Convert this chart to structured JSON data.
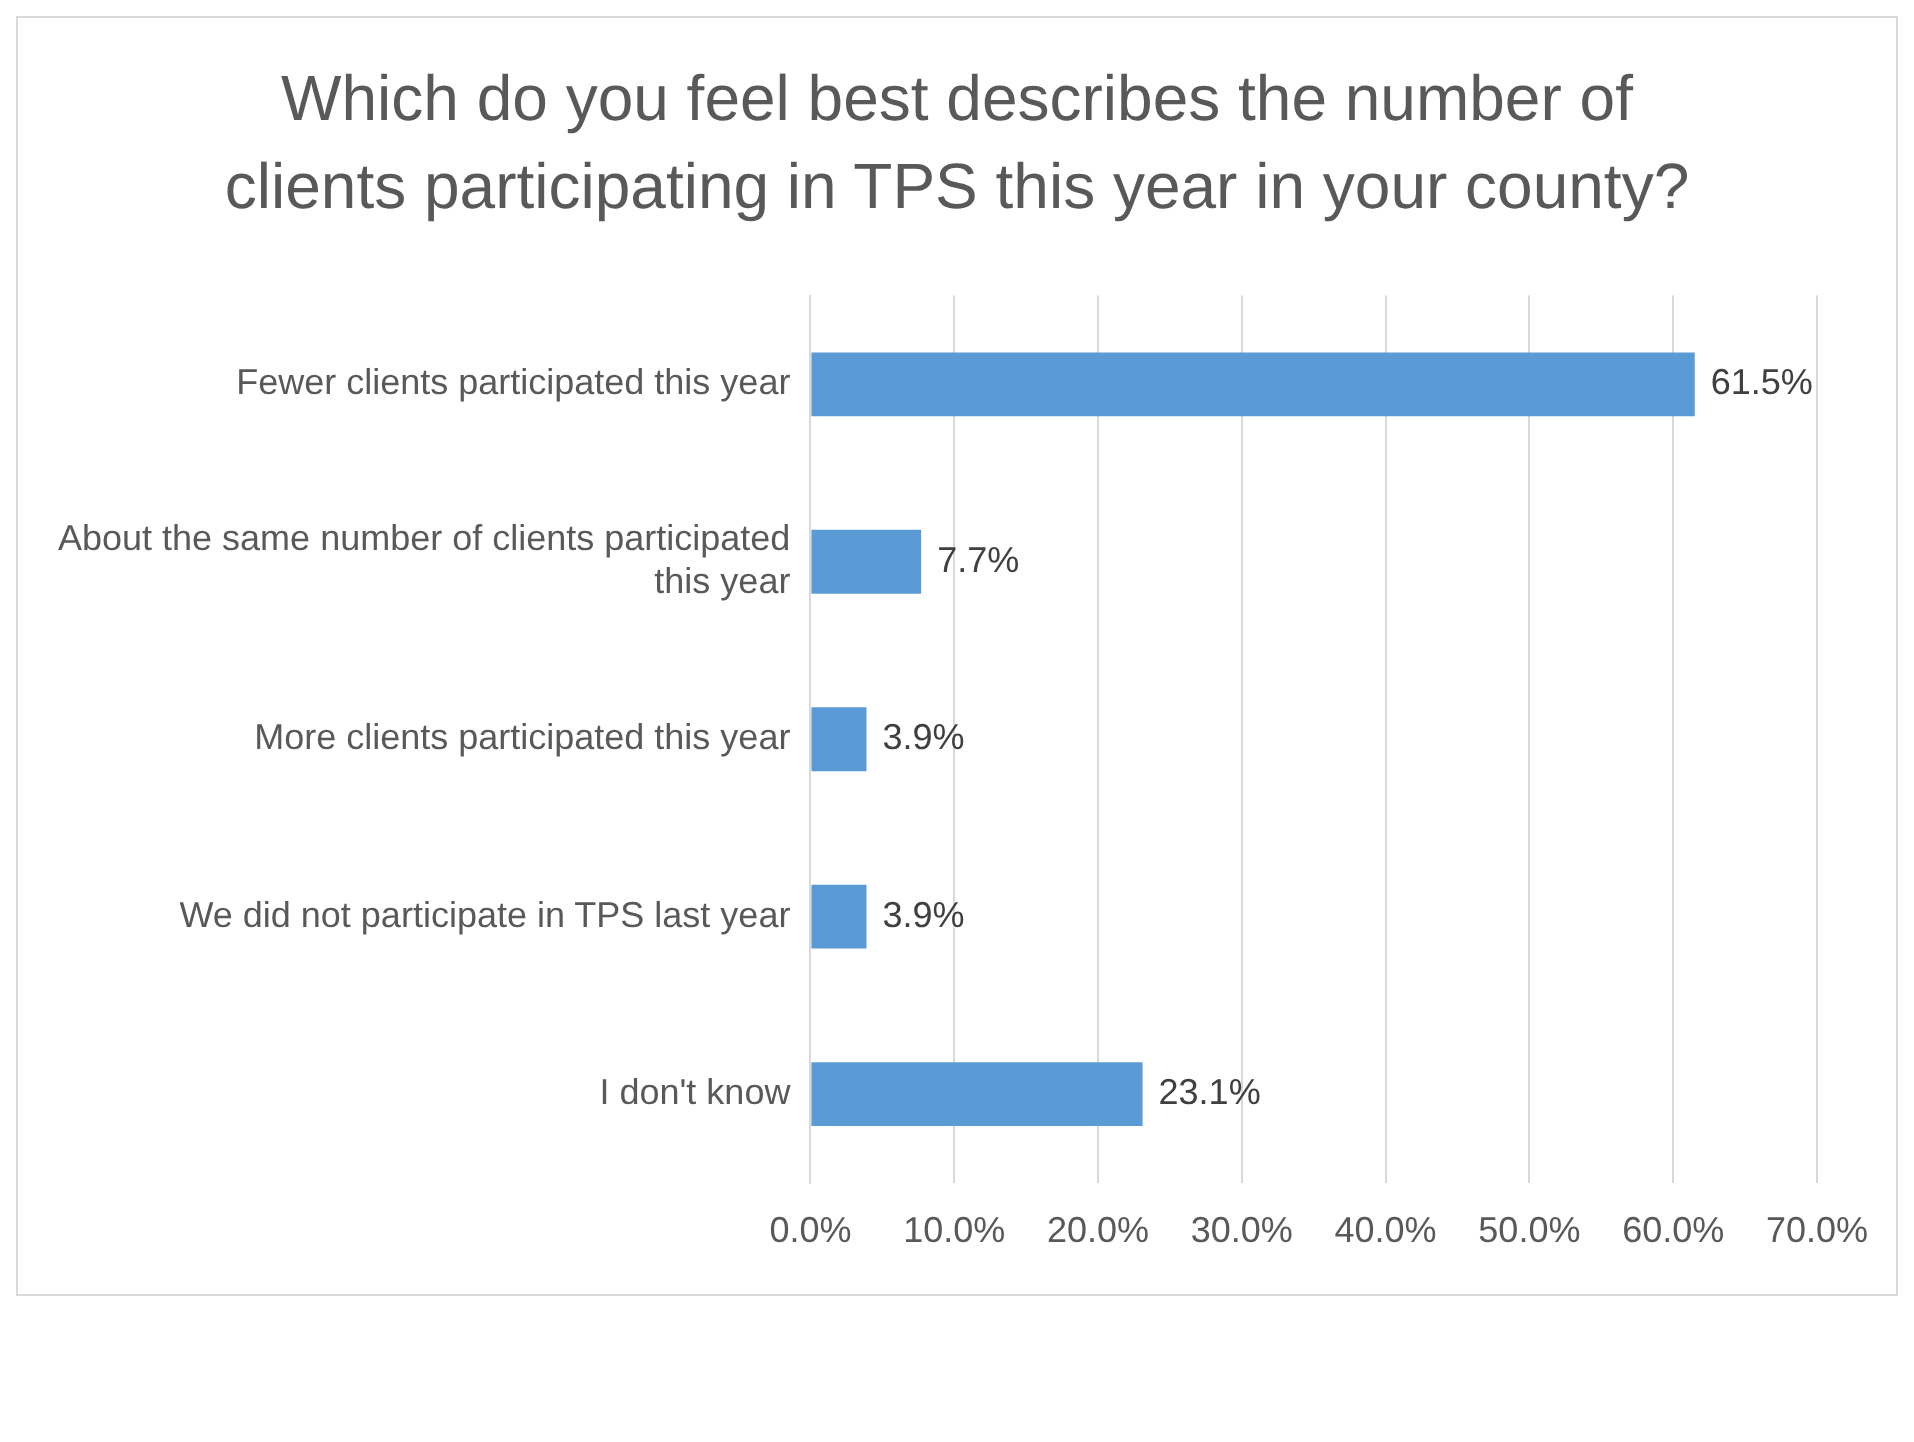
{
  "chart_data": {
    "type": "bar",
    "orientation": "horizontal",
    "title": "Which do you feel best describes the number of clients participating in TPS this year in your county?",
    "categories": [
      "Fewer clients participated this year",
      "About the same number of clients participated this year",
      "More clients participated this year",
      "We did not participate in TPS last year",
      "I don't know"
    ],
    "values": [
      61.5,
      7.7,
      3.9,
      3.9,
      23.1
    ],
    "value_labels": [
      "61.5%",
      "7.7%",
      "3.9%",
      "3.9%",
      "23.1%"
    ],
    "color": "#5b9bd5",
    "xlim": [
      0,
      70
    ],
    "xticks": [
      {
        "value": 0,
        "label": "0.0%"
      },
      {
        "value": 10,
        "label": "10.0%"
      },
      {
        "value": 20,
        "label": "20.0%"
      },
      {
        "value": 30,
        "label": "30.0%"
      },
      {
        "value": 40,
        "label": "40.0%"
      },
      {
        "value": 50,
        "label": "50.0%"
      },
      {
        "value": 60,
        "label": "60.0%"
      },
      {
        "value": 70,
        "label": "70.0%"
      }
    ],
    "grid": "x",
    "legend": false
  }
}
